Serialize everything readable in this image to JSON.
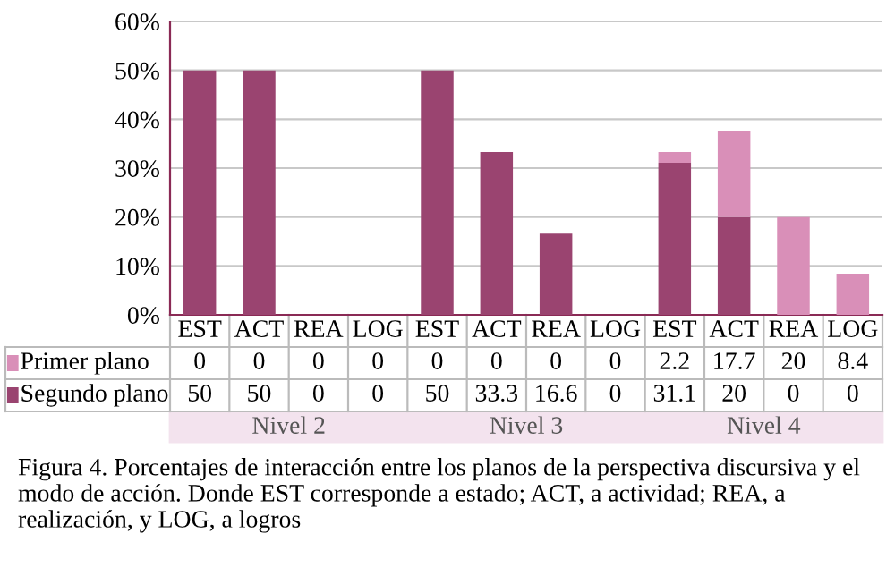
{
  "chart_data": {
    "type": "bar",
    "stacked": true,
    "categories": [
      "EST",
      "ACT",
      "REA",
      "LOG",
      "EST",
      "ACT",
      "REA",
      "LOG",
      "EST",
      "ACT",
      "REA",
      "LOG"
    ],
    "series": [
      {
        "name": "Segundo plano",
        "color": "#9a4470",
        "values": [
          50,
          50,
          0,
          0,
          50,
          33.3,
          16.6,
          0,
          31.1,
          20,
          0,
          0
        ]
      },
      {
        "name": "Primer plano",
        "color": "#d98fb8",
        "values": [
          0,
          0,
          0,
          0,
          0,
          0,
          0,
          0,
          2.2,
          17.7,
          20,
          8.4
        ]
      }
    ],
    "ylim": [
      0,
      60
    ],
    "yticks": [
      {
        "value": 0,
        "label": "0%"
      },
      {
        "value": 10,
        "label": "10%"
      },
      {
        "value": 20,
        "label": "20%"
      },
      {
        "value": 30,
        "label": "30%"
      },
      {
        "value": 40,
        "label": "40%"
      },
      {
        "value": 50,
        "label": "50%"
      },
      {
        "value": 60,
        "label": "60%"
      }
    ],
    "grid": "y",
    "data_labels": true,
    "legend": "bottom",
    "annotations": [
      "Nivel 2",
      "Nivel 3",
      "Nivel 4",
      "Figura 4. Porcentajes de interacción entre los planos de la perspectiva discursiva y el modo de acción. Donde EST corresponde a estado; ACT, a actividad; REA, a realización, y LOG, a logros"
    ]
  }
}
